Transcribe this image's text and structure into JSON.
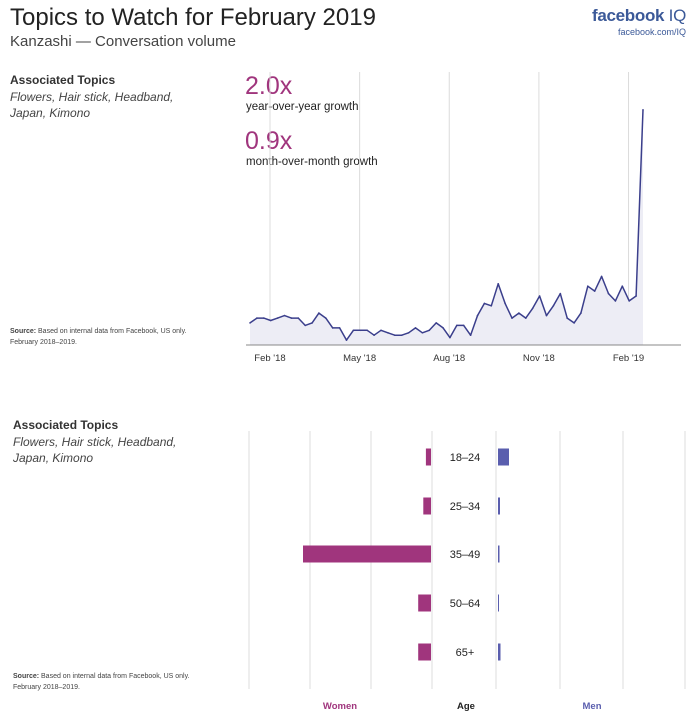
{
  "header": {
    "title": "Topics to Watch for February 2019",
    "subtitle": "Kanzashi — Conversation volume",
    "logo_brand": "facebook",
    "logo_iq": "IQ",
    "logo_url": "facebook.com/IQ"
  },
  "top_panel": {
    "assoc_heading": "Associated Topics",
    "assoc_topics": "Flowers, Hair stick, Headband, Japan, Kimono",
    "source_label": "Source:",
    "source_text": "Based on internal data from Facebook, US only. February 2018–2019."
  },
  "stats": {
    "yoy_value": "2.0x",
    "yoy_label": "year-over-year growth",
    "mom_value": "0.9x",
    "mom_label": "month-over-month growth"
  },
  "bottom_panel": {
    "assoc_heading": "Associated Topics",
    "assoc_topics": "Flowers, Hair stick, Headband, Japan, Kimono",
    "source_label": "Source:",
    "source_text": "Based on internal data from Facebook, US only. February 2018–2019."
  },
  "colors": {
    "line": "#3b3f8c",
    "area": "#ededf5",
    "women": "#a0357d",
    "men": "#5a5eae",
    "grid": "#dcdcdc"
  },
  "chart_data": [
    {
      "type": "area",
      "title": "Kanzashi — Conversation volume",
      "x_tick_labels": [
        "Feb '18",
        "May '18",
        "Aug '18",
        "Nov '18",
        "Feb '19"
      ],
      "x_tick_index": [
        0,
        13,
        26,
        39,
        52
      ],
      "ylim": [
        0,
        100
      ],
      "values": [
        9,
        11,
        11,
        10,
        11,
        12,
        11,
        11,
        8,
        9,
        13,
        11,
        7,
        7,
        2,
        6,
        6,
        6,
        4,
        6,
        5,
        4,
        4,
        5,
        7,
        5,
        6,
        9,
        7,
        3,
        8,
        8,
        4,
        12,
        17,
        16,
        25,
        17,
        11,
        13,
        11,
        15,
        20,
        12,
        16,
        21,
        11,
        9,
        13,
        24,
        22,
        28,
        21,
        18,
        24,
        18,
        20,
        96
      ]
    },
    {
      "type": "bar",
      "orientation": "horizontal",
      "xlabel_left": "Women",
      "xlabel_center": "Age",
      "xlabel_right": "Men",
      "categories": [
        "18–24",
        "25–34",
        "35–49",
        "50–64",
        "65+"
      ],
      "series": [
        {
          "name": "Women",
          "values": [
            1,
            1.5,
            25,
            2.5,
            2.5
          ]
        },
        {
          "name": "Men",
          "values": [
            2.2,
            0.4,
            0.3,
            0.2,
            0.5
          ]
        }
      ],
      "xlim": [
        0,
        35
      ]
    }
  ]
}
